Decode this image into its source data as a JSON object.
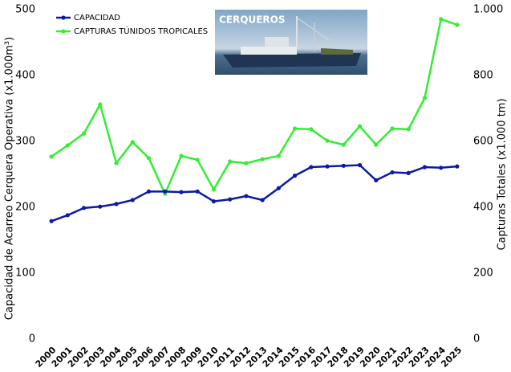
{
  "chart_data": {
    "type": "line",
    "categories": [
      "2000",
      "2001",
      "2002",
      "2003",
      "2004",
      "2005",
      "2006",
      "2007",
      "2008",
      "2009",
      "2010",
      "2011",
      "2012",
      "2013",
      "2014",
      "2015",
      "2016",
      "2017",
      "2018",
      "2019",
      "2020",
      "2021",
      "2022",
      "2023",
      "2024",
      "2025"
    ],
    "series": [
      {
        "name": "CAPACIDAD",
        "color": "#0a1aa6",
        "values": [
          179,
          188,
          199,
          201,
          205,
          211,
          224,
          224,
          223,
          224,
          209,
          212,
          217,
          211,
          229,
          248,
          261,
          262,
          263,
          264,
          241,
          253,
          252,
          261,
          260,
          262
        ]
      },
      {
        "name": "CAPTURAS TÚNIDOS TROPICALES",
        "color": "#33ee33",
        "axis": "y2",
        "values": [
          554,
          588,
          624,
          712,
          534,
          598,
          549,
          441,
          556,
          544,
          454,
          539,
          534,
          546,
          556,
          639,
          637,
          602,
          590,
          646,
          590,
          639,
          637,
          732,
          971,
          954
        ]
      }
    ],
    "ylabel": "Capacidad de Acarreo Cerquera Operativa (x1.000m³)",
    "y2label": "Capturas Totales (x1.000 tm)",
    "ylim": [
      0,
      500
    ],
    "yticks": [
      0,
      100,
      200,
      300,
      400,
      500
    ],
    "y2lim": [
      0,
      1000
    ],
    "y2ticks": [
      0,
      200,
      400,
      600,
      800,
      {
        "value": 1000,
        "label": "1.000"
      }
    ],
    "legend": "upper left",
    "image_caption": "CERQUEROS"
  }
}
